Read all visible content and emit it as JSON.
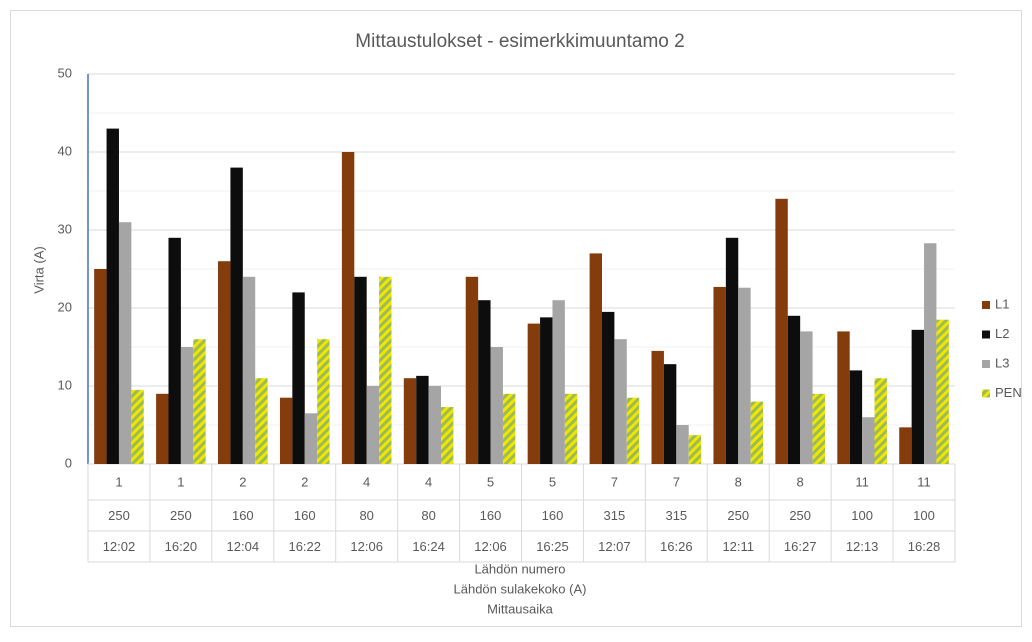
{
  "chart_data": {
    "type": "bar",
    "title": "Mittaustulokset - esimerkkimuuntamo 2",
    "y_label": "Virta (A)",
    "x_labels": [
      "Lähdön numero",
      "Lähdön sulakekoko (A)",
      "Mittausaika"
    ],
    "categories": [
      [
        "1",
        "250",
        "12:02"
      ],
      [
        "1",
        "250",
        "16:20"
      ],
      [
        "2",
        "160",
        "12:04"
      ],
      [
        "2",
        "160",
        "16:22"
      ],
      [
        "4",
        "80",
        "12:06"
      ],
      [
        "4",
        "80",
        "16:24"
      ],
      [
        "5",
        "160",
        "12:06"
      ],
      [
        "5",
        "160",
        "16:25"
      ],
      [
        "7",
        "315",
        "12:07"
      ],
      [
        "7",
        "315",
        "16:26"
      ],
      [
        "8",
        "250",
        "12:11"
      ],
      [
        "8",
        "250",
        "16:27"
      ],
      [
        "11",
        "100",
        "12:13"
      ],
      [
        "11",
        "100",
        "16:28"
      ]
    ],
    "series": [
      {
        "name": "L1",
        "color": "#843c0c",
        "values": [
          25,
          9,
          26,
          8.5,
          40,
          11,
          24,
          18,
          27,
          14.5,
          22.7,
          34,
          17,
          4.7
        ]
      },
      {
        "name": "L2",
        "color": "#0d0d0d",
        "values": [
          43,
          29,
          38,
          22,
          24,
          11.3,
          21,
          18.8,
          19.5,
          12.8,
          29,
          19,
          12,
          17.2
        ]
      },
      {
        "name": "L3",
        "color": "#a5a5a5",
        "values": [
          31,
          15,
          24,
          6.5,
          10,
          10,
          15,
          21,
          16,
          5,
          22.6,
          17,
          6,
          28.3
        ]
      },
      {
        "name": "PEN",
        "color": "#9bbb59",
        "hatch_color": "#f2e600",
        "values": [
          9.5,
          16,
          11,
          16,
          24,
          7.3,
          9,
          9,
          8.5,
          3.7,
          8,
          9,
          11,
          18.5
        ]
      }
    ],
    "ylim": [
      0,
      50
    ],
    "yticks": [
      0,
      10,
      20,
      30,
      40,
      50
    ],
    "minor_yticks": [
      5,
      15,
      25,
      35,
      45
    ],
    "grid": true,
    "legend": "right"
  }
}
